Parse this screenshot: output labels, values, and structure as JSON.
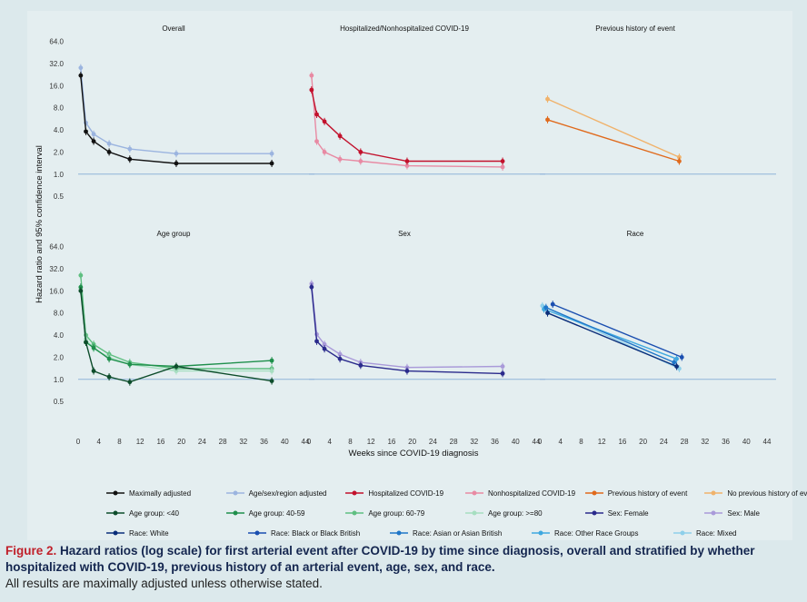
{
  "chart_data": {
    "type": "line",
    "scale": "log",
    "ylabel": "Hazard ratio and 95% confidence interval",
    "xlabel": "Weeks since COVID-19 diagnosis",
    "yticks": [
      0.5,
      1.0,
      2.0,
      4.0,
      8.0,
      16.0,
      32.0,
      64.0
    ],
    "ytick_labels": [
      "0.5",
      "1.0",
      "2.0",
      "4.0",
      "8.0",
      "16.0",
      "32.0",
      "64.0"
    ],
    "xticks": [
      0,
      4,
      8,
      12,
      16,
      20,
      24,
      28,
      32,
      36,
      40,
      44
    ],
    "xtick_labels": [
      "0",
      "4",
      "8",
      "12",
      "16",
      "20",
      "24",
      "28",
      "32",
      "36",
      "40",
      "44"
    ],
    "xlim": [
      0,
      44
    ],
    "ylim": [
      0.4,
      75
    ],
    "reference_line": 1.0,
    "panels": [
      {
        "title": "Overall",
        "series": [
          {
            "name": "Age/sex/region adjusted",
            "color": "#9bb4df",
            "x": [
              0.5,
              1.5,
              3,
              6,
              10,
              19,
              37.5
            ],
            "y": [
              28,
              5,
              3.5,
              2.6,
              2.2,
              1.9,
              1.9
            ]
          },
          {
            "name": "Maximally adjusted",
            "color": "#111111",
            "x": [
              0.5,
              1.5,
              3,
              6,
              10,
              19,
              37.5
            ],
            "y": [
              22,
              3.8,
              2.8,
              2.0,
              1.6,
              1.4,
              1.4
            ]
          }
        ]
      },
      {
        "title": "Hospitalized/Nonhospitalized COVID-19",
        "series": [
          {
            "name": "Nonhospitalized COVID-19",
            "color": "#e88aa3",
            "x": [
              0.5,
              1.5,
              3,
              6,
              10,
              19,
              37.5
            ],
            "y": [
              22,
              2.8,
              2.0,
              1.6,
              1.5,
              1.3,
              1.25
            ]
          },
          {
            "name": "Hospitalized COVID-19",
            "color": "#c2112c",
            "x": [
              0.5,
              1.5,
              3,
              6,
              10,
              19,
              37.5
            ],
            "y": [
              14,
              6.5,
              5.2,
              3.3,
              2.0,
              1.5,
              1.5
            ]
          }
        ]
      },
      {
        "title": "Previous history of event",
        "series": [
          {
            "name": "No previous history of event",
            "color": "#f0b26b",
            "x": [
              1.5,
              27
            ],
            "y": [
              10.5,
              1.7
            ]
          },
          {
            "name": "Previous history of event",
            "color": "#e06a1c",
            "x": [
              1.5,
              27
            ],
            "y": [
              5.5,
              1.5
            ]
          }
        ]
      },
      {
        "title": "Age group",
        "series": [
          {
            "name": "Age group: 60-79",
            "color": "#5fbf81",
            "x": [
              0.5,
              1.5,
              3,
              6,
              10,
              19,
              37.5
            ],
            "y": [
              26,
              4.0,
              3.0,
              2.2,
              1.7,
              1.4,
              1.4
            ]
          },
          {
            "name": "Age group: >=80",
            "color": "#a6dec0",
            "x": [
              0.5,
              1.5,
              3,
              6,
              10,
              19,
              37.5
            ],
            "y": [
              17,
              3.5,
              2.6,
              2.0,
              1.6,
              1.3,
              1.3
            ]
          },
          {
            "name": "Age group: 40-59",
            "color": "#1f8f4c",
            "x": [
              0.5,
              1.5,
              3,
              6,
              10,
              19,
              37.5
            ],
            "y": [
              18,
              3.2,
              2.7,
              1.9,
              1.6,
              1.5,
              1.8
            ]
          },
          {
            "name": "Age group: <40",
            "color": "#0d4d2b",
            "x": [
              0.5,
              1.5,
              3,
              6,
              10,
              19,
              37.5
            ],
            "y": [
              16,
              3.2,
              1.3,
              1.08,
              0.92,
              1.5,
              0.95
            ]
          }
        ]
      },
      {
        "title": "Sex",
        "series": [
          {
            "name": "Sex: Male",
            "color": "#a99ad9",
            "x": [
              0.5,
              1.5,
              3,
              6,
              10,
              19,
              37.5
            ],
            "y": [
              20,
              4.1,
              3.0,
              2.2,
              1.7,
              1.45,
              1.5
            ]
          },
          {
            "name": "Sex: Female",
            "color": "#2a2a8c",
            "x": [
              0.5,
              1.5,
              3,
              6,
              10,
              19,
              37.5
            ],
            "y": [
              18,
              3.3,
              2.6,
              1.9,
              1.55,
              1.3,
              1.2
            ]
          }
        ]
      },
      {
        "title": "Race",
        "series": [
          {
            "name": "Race: Mixed",
            "color": "#8ecfea",
            "x": [
              0.5,
              27
            ],
            "y": [
              10,
              1.4
            ]
          },
          {
            "name": "Race: Other Race Groups",
            "color": "#3fa8df",
            "x": [
              0.8,
              26.5
            ],
            "y": [
              9,
              1.9
            ]
          },
          {
            "name": "Race: Asian or Asian British",
            "color": "#1f76c8",
            "x": [
              1.2,
              26
            ],
            "y": [
              9.5,
              1.7
            ]
          },
          {
            "name": "Race: White",
            "color": "#0b2e7a",
            "x": [
              1.5,
              26.5
            ],
            "y": [
              8.0,
              1.5
            ]
          },
          {
            "name": "Race: Black or Black British",
            "color": "#1b4fb0",
            "x": [
              2.5,
              27.5
            ],
            "y": [
              10.5,
              2.0
            ]
          }
        ]
      }
    ]
  },
  "legend": [
    [
      {
        "label": "Maximally adjusted",
        "color": "#111111"
      },
      {
        "label": "Age/sex/region adjusted",
        "color": "#9bb4df"
      },
      {
        "label": "Hospitalized COVID-19",
        "color": "#c2112c"
      },
      {
        "label": "Nonhospitalized COVID-19",
        "color": "#e88aa3"
      },
      {
        "label": "Previous history of event",
        "color": "#e06a1c"
      },
      {
        "label": "No previous history of event",
        "color": "#f0b26b"
      }
    ],
    [
      {
        "label": "Age group: <40",
        "color": "#0d4d2b"
      },
      {
        "label": "Age group: 40-59",
        "color": "#1f8f4c"
      },
      {
        "label": "Age group: 60-79",
        "color": "#5fbf81"
      },
      {
        "label": "Age group: >=80",
        "color": "#a6dec0"
      },
      {
        "label": "Sex: Female",
        "color": "#2a2a8c"
      },
      {
        "label": "Sex: Male",
        "color": "#a99ad9"
      }
    ],
    [
      {
        "label": "Race: White",
        "color": "#0b2e7a"
      },
      {
        "label": "Race: Black or Black British",
        "color": "#1b4fb0"
      },
      {
        "label": "Race: Asian or Asian British",
        "color": "#1f76c8"
      },
      {
        "label": "Race: Other Race Groups",
        "color": "#3fa8df"
      },
      {
        "label": "Race: Mixed",
        "color": "#8ecfea"
      }
    ]
  ],
  "caption": {
    "label": "Figure 2.",
    "text": "Hazard ratios (log scale) for first arterial event after COVID-19 by time since diagnosis, overall and stratified by whether hospitalized with COVID-19, previous history of an arterial event, age, sex, and race.",
    "note": "All results are maximally adjusted unless otherwise stated."
  },
  "colors": {
    "reference_line": "#8fb3d9",
    "panel_bg": "#e4eef0",
    "caption_label": "#c0202a",
    "caption_text": "#14264f"
  }
}
